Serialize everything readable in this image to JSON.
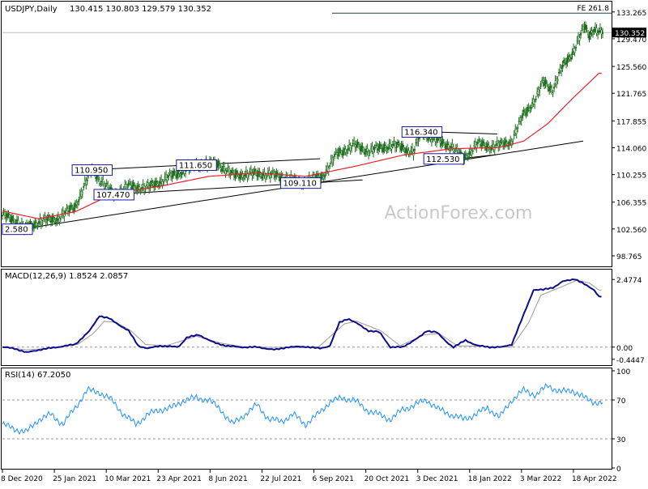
{
  "chart_data": [
    {
      "type": "candlestick",
      "panel": "price",
      "title": "USDJPY,Daily",
      "ohlc_label": "130.415 130.803 129.579 130.352",
      "ylim": [
        97.5,
        134.5
      ],
      "yticks": [
        "133.265",
        "129.470",
        "125.560",
        "121.765",
        "117.855",
        "114.060",
        "110.255",
        "106.355",
        "102.560",
        "98.765"
      ],
      "current_price": "130.352",
      "fe_label": "FE 261.8",
      "fe_level": 133.1,
      "watermark": "ActionForex.com",
      "annotations": [
        {
          "text": "110.950",
          "t": 74,
          "v": 110.95
        },
        {
          "text": "111.650",
          "t": 160,
          "v": 111.65
        },
        {
          "text": "107.470",
          "t": 92,
          "v": 107.47
        },
        {
          "text": "109.110",
          "t": 246,
          "v": 109.11
        },
        {
          "text": "116.340",
          "t": 346,
          "v": 116.34
        },
        {
          "text": "112.530",
          "t": 364,
          "v": 112.53
        },
        {
          "text": "2.580",
          "t": 3,
          "v": 102.58
        }
      ],
      "trendlines": [
        {
          "t1": 74,
          "v1": 110.95,
          "t2": 262,
          "v2": 112.5
        },
        {
          "t1": 18,
          "v1": 102.6,
          "t2": 479,
          "v2": 115.0
        },
        {
          "t1": 91,
          "v1": 107.47,
          "t2": 297,
          "v2": 109.5
        },
        {
          "t1": 346,
          "v1": 116.34,
          "t2": 408,
          "v2": 116.0
        },
        {
          "t1": 380,
          "v1": 112.55,
          "t2": 408,
          "v2": 113.1
        }
      ],
      "key_points": [
        [
          0,
          104.5
        ],
        [
          12,
          103.7
        ],
        [
          18,
          102.58
        ],
        [
          30,
          103.6
        ],
        [
          45,
          104.0
        ],
        [
          60,
          105.8
        ],
        [
          74,
          110.95
        ],
        [
          82,
          109.2
        ],
        [
          92,
          107.47
        ],
        [
          104,
          108.6
        ],
        [
          120,
          108.4
        ],
        [
          136,
          109.8
        ],
        [
          160,
          111.65
        ],
        [
          178,
          111.8
        ],
        [
          190,
          110.2
        ],
        [
          214,
          110.4
        ],
        [
          230,
          110.0
        ],
        [
          246,
          109.11
        ],
        [
          264,
          110.0
        ],
        [
          276,
          113.2
        ],
        [
          290,
          114.4
        ],
        [
          302,
          113.6
        ],
        [
          320,
          114.4
        ],
        [
          330,
          114.1
        ],
        [
          339,
          113.4
        ],
        [
          346,
          116.34
        ],
        [
          358,
          115.0
        ],
        [
          370,
          114.3
        ],
        [
          380,
          112.53
        ],
        [
          392,
          114.6
        ],
        [
          404,
          114.2
        ],
        [
          412,
          114.5
        ],
        [
          420,
          115.0
        ],
        [
          430,
          118.8
        ],
        [
          440,
          121.0
        ],
        [
          446,
          123.4
        ],
        [
          454,
          122.3
        ],
        [
          462,
          125.5
        ],
        [
          470,
          127.5
        ],
        [
          476,
          129.6
        ],
        [
          480,
          131.2
        ],
        [
          484,
          130.0
        ],
        [
          488,
          131.0
        ],
        [
          492,
          130.35
        ]
      ],
      "ma_key_points": [
        [
          0,
          105.1
        ],
        [
          30,
          104.0
        ],
        [
          60,
          105.0
        ],
        [
          92,
          107.6
        ],
        [
          130,
          108.6
        ],
        [
          170,
          110.0
        ],
        [
          210,
          110.5
        ],
        [
          250,
          110.0
        ],
        [
          290,
          111.4
        ],
        [
          330,
          113.0
        ],
        [
          370,
          113.9
        ],
        [
          410,
          114.1
        ],
        [
          430,
          115.0
        ],
        [
          450,
          117.5
        ],
        [
          470,
          121.0
        ],
        [
          492,
          124.6
        ]
      ]
    },
    {
      "type": "line",
      "panel": "macd",
      "title": "MACD(12,26,9) 1.8524 2.0857",
      "ylim": [
        -0.6,
        2.75
      ],
      "yticks": [
        "2.4774",
        "0.00",
        "-0.4447"
      ],
      "zero_label": "0.00",
      "macd_key_points": [
        [
          0,
          0.0
        ],
        [
          10,
          -0.05
        ],
        [
          20,
          -0.2
        ],
        [
          30,
          -0.1
        ],
        [
          45,
          0.0
        ],
        [
          60,
          0.1
        ],
        [
          72,
          0.6
        ],
        [
          80,
          1.15
        ],
        [
          88,
          1.05
        ],
        [
          95,
          0.85
        ],
        [
          104,
          0.6
        ],
        [
          112,
          0.05
        ],
        [
          120,
          -0.05
        ],
        [
          130,
          0.05
        ],
        [
          145,
          0.0
        ],
        [
          152,
          0.35
        ],
        [
          162,
          0.45
        ],
        [
          175,
          0.15
        ],
        [
          185,
          0.05
        ],
        [
          195,
          0.0
        ],
        [
          210,
          0.0
        ],
        [
          225,
          -0.1
        ],
        [
          235,
          0.0
        ],
        [
          250,
          0.02
        ],
        [
          262,
          -0.05
        ],
        [
          270,
          0.05
        ],
        [
          278,
          0.9
        ],
        [
          285,
          1.05
        ],
        [
          293,
          0.85
        ],
        [
          302,
          0.6
        ],
        [
          311,
          0.55
        ],
        [
          320,
          0.0
        ],
        [
          330,
          0.0
        ],
        [
          345,
          0.4
        ],
        [
          350,
          0.6
        ],
        [
          358,
          0.55
        ],
        [
          366,
          0.2
        ],
        [
          372,
          0.0
        ],
        [
          382,
          0.25
        ],
        [
          392,
          0.05
        ],
        [
          402,
          0.0
        ],
        [
          412,
          0.0
        ],
        [
          420,
          0.1
        ],
        [
          430,
          1.2
        ],
        [
          438,
          2.1
        ],
        [
          446,
          2.1
        ],
        [
          455,
          2.2
        ],
        [
          462,
          2.4
        ],
        [
          472,
          2.5
        ],
        [
          480,
          2.3
        ],
        [
          488,
          2.1
        ],
        [
          492,
          1.85
        ]
      ],
      "signal_key_points": [
        [
          0,
          0.0
        ],
        [
          20,
          -0.1
        ],
        [
          45,
          -0.02
        ],
        [
          62,
          0.1
        ],
        [
          75,
          0.5
        ],
        [
          84,
          0.95
        ],
        [
          94,
          0.9
        ],
        [
          106,
          0.6
        ],
        [
          118,
          0.1
        ],
        [
          135,
          0.05
        ],
        [
          160,
          0.4
        ],
        [
          180,
          0.15
        ],
        [
          200,
          0.0
        ],
        [
          260,
          -0.02
        ],
        [
          282,
          0.85
        ],
        [
          292,
          0.95
        ],
        [
          312,
          0.6
        ],
        [
          328,
          0.05
        ],
        [
          348,
          0.45
        ],
        [
          360,
          0.5
        ],
        [
          375,
          0.05
        ],
        [
          420,
          0.0
        ],
        [
          434,
          0.9
        ],
        [
          444,
          1.9
        ],
        [
          458,
          2.15
        ],
        [
          474,
          2.45
        ],
        [
          484,
          2.35
        ],
        [
          492,
          2.09
        ]
      ]
    },
    {
      "type": "line",
      "panel": "rsi",
      "title": "RSI(14) 67.2050",
      "ylim": [
        0,
        100
      ],
      "yticks": [
        "100",
        "70",
        "30",
        "0"
      ],
      "levels": [
        70,
        30
      ],
      "rsi_key_points": [
        [
          0,
          45
        ],
        [
          10,
          40
        ],
        [
          20,
          37
        ],
        [
          30,
          50
        ],
        [
          40,
          55
        ],
        [
          50,
          45
        ],
        [
          60,
          62
        ],
        [
          70,
          80
        ],
        [
          80,
          78
        ],
        [
          90,
          70
        ],
        [
          100,
          55
        ],
        [
          110,
          45
        ],
        [
          120,
          55
        ],
        [
          130,
          60
        ],
        [
          140,
          62
        ],
        [
          150,
          70
        ],
        [
          160,
          72
        ],
        [
          170,
          70
        ],
        [
          180,
          60
        ],
        [
          190,
          45
        ],
        [
          200,
          55
        ],
        [
          210,
          65
        ],
        [
          220,
          50
        ],
        [
          230,
          48
        ],
        [
          240,
          55
        ],
        [
          250,
          45
        ],
        [
          260,
          55
        ],
        [
          270,
          68
        ],
        [
          280,
          72
        ],
        [
          290,
          70
        ],
        [
          300,
          60
        ],
        [
          310,
          55
        ],
        [
          320,
          50
        ],
        [
          330,
          60
        ],
        [
          340,
          65
        ],
        [
          350,
          70
        ],
        [
          360,
          60
        ],
        [
          370,
          55
        ],
        [
          380,
          50
        ],
        [
          390,
          55
        ],
        [
          400,
          62
        ],
        [
          410,
          52
        ],
        [
          420,
          70
        ],
        [
          430,
          80
        ],
        [
          440,
          75
        ],
        [
          450,
          85
        ],
        [
          460,
          78
        ],
        [
          470,
          80
        ],
        [
          480,
          72
        ],
        [
          488,
          68
        ],
        [
          492,
          67
        ]
      ]
    }
  ],
  "x_axis": {
    "labels": [
      "8 Dec 2020",
      "25 Jan 2021",
      "10 Mar 2021",
      "23 Apr 2021",
      "8 Jun 2021",
      "22 Jul 2021",
      "6 Sep 2021",
      "20 Oct 2021",
      "3 Dec 2021",
      "18 Jan 2022",
      "3 Mar 2022",
      "18 Apr 2022"
    ],
    "label_bars": [
      0,
      32,
      64,
      96,
      128,
      160,
      192,
      224,
      256,
      288,
      320,
      352
    ],
    "total_bars": 496
  },
  "colors": {
    "candle": "#1a6b1a",
    "ma": "#e8242c",
    "macd": "#0c0c8a",
    "signal": "#9a9a9a",
    "rsi": "#1e90ff",
    "grid_dash": "#9a9a9a",
    "text": "#000000",
    "watermark": "#c8c8c8",
    "label_border": "#1a1aa0"
  }
}
